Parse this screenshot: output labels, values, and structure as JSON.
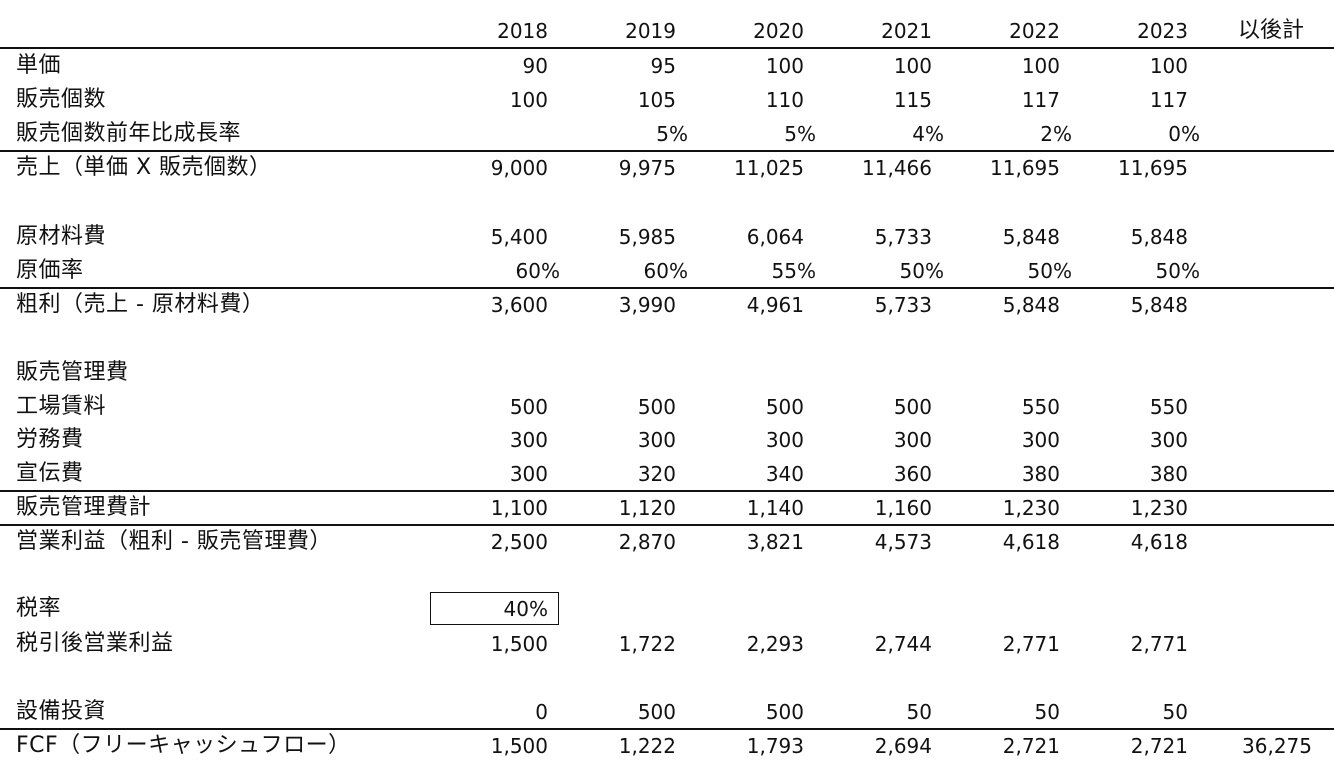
{
  "header": {
    "years": [
      "2018",
      "2019",
      "2020",
      "2021",
      "2022",
      "2023"
    ],
    "total_label": "以後計"
  },
  "rows": [
    {
      "label": "単価",
      "values": [
        "90",
        "95",
        "100",
        "100",
        "100",
        "100"
      ]
    },
    {
      "label": "販売個数",
      "values": [
        "100",
        "105",
        "110",
        "115",
        "117",
        "117"
      ]
    },
    {
      "label": "販売個数前年比成長率",
      "values": [
        "",
        "5%",
        "5%",
        "4%",
        "2%",
        "0%"
      ]
    },
    {
      "label": "売上（単価 X 販売個数）",
      "values": [
        "9,000",
        "9,975",
        "11,025",
        "11,466",
        "11,695",
        "11,695"
      ]
    },
    {
      "label": "原材料費",
      "values": [
        "5,400",
        "5,985",
        "6,064",
        "5,733",
        "5,848",
        "5,848"
      ]
    },
    {
      "label": "原価率",
      "values": [
        "60%",
        "60%",
        "55%",
        "50%",
        "50%",
        "50%"
      ]
    },
    {
      "label": "粗利（売上 - 原材料費）",
      "values": [
        "3,600",
        "3,990",
        "4,961",
        "5,733",
        "5,848",
        "5,848"
      ]
    },
    {
      "label": "販売管理費",
      "values": [
        "",
        "",
        "",
        "",
        "",
        ""
      ]
    },
    {
      "label": "工場賃料",
      "values": [
        "500",
        "500",
        "500",
        "500",
        "550",
        "550"
      ]
    },
    {
      "label": "労務費",
      "values": [
        "300",
        "300",
        "300",
        "300",
        "300",
        "300"
      ]
    },
    {
      "label": "宣伝費",
      "values": [
        "300",
        "320",
        "340",
        "360",
        "380",
        "380"
      ]
    },
    {
      "label": "販売管理費計",
      "values": [
        "1,100",
        "1,120",
        "1,140",
        "1,160",
        "1,230",
        "1,230"
      ]
    },
    {
      "label": "営業利益（粗利 - 販売管理費）",
      "values": [
        "2,500",
        "2,870",
        "3,821",
        "4,573",
        "4,618",
        "4,618"
      ]
    },
    {
      "label": "税率",
      "values": [
        "40%",
        "",
        "",
        "",
        "",
        ""
      ]
    },
    {
      "label": "税引後営業利益",
      "values": [
        "1,500",
        "1,722",
        "2,293",
        "2,744",
        "2,771",
        "2,771"
      ]
    },
    {
      "label": "設備投資",
      "values": [
        "0",
        "500",
        "500",
        "50",
        "50",
        "50"
      ]
    },
    {
      "label": "FCF（フリーキャッシュフロー）",
      "values": [
        "1,500",
        "1,222",
        "1,793",
        "2,694",
        "2,721",
        "2,721"
      ],
      "total": "36,275"
    }
  ]
}
